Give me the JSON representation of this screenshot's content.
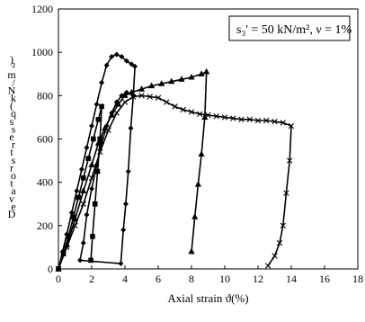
{
  "chart_data": {
    "type": "line",
    "annotation": "s₃' = 50 kN/m², ν = 1%",
    "xlabel": "Axial strain ϑ(%)",
    "ylabel_chars": [
      "D",
      "e",
      "v",
      "a",
      "t",
      "o",
      "r",
      "s",
      "t",
      "r",
      "e",
      "s",
      "s",
      "q",
      "(",
      "k",
      "N",
      "/",
      "m",
      "²",
      ")"
    ],
    "xlim": [
      0,
      18
    ],
    "ylim": [
      0,
      1200
    ],
    "x_ticks": [
      0,
      2,
      4,
      6,
      8,
      10,
      12,
      14,
      16,
      18
    ],
    "y_ticks": [
      0,
      200,
      400,
      600,
      800,
      1000,
      1200
    ],
    "grid": false,
    "series": [
      {
        "marker": "diamond",
        "values": [
          [
            0,
            0
          ],
          [
            0.25,
            80
          ],
          [
            0.5,
            160
          ],
          [
            0.8,
            260
          ],
          [
            1.1,
            360
          ],
          [
            1.4,
            460
          ],
          [
            1.7,
            560
          ],
          [
            2.0,
            660
          ],
          [
            2.3,
            760
          ],
          [
            2.6,
            860
          ],
          [
            2.9,
            940
          ],
          [
            3.2,
            980
          ],
          [
            3.5,
            990
          ],
          [
            3.8,
            980
          ],
          [
            4.1,
            960
          ],
          [
            4.4,
            945
          ],
          [
            4.6,
            935
          ],
          [
            4.5,
            800
          ],
          [
            4.35,
            650
          ],
          [
            4.2,
            450
          ],
          [
            4.05,
            300
          ],
          [
            3.9,
            180
          ],
          [
            3.75,
            25
          ],
          [
            1.3,
            40
          ],
          [
            1.5,
            120
          ],
          [
            1.7,
            250
          ],
          [
            2.0,
            370
          ],
          [
            2.3,
            480
          ],
          [
            2.6,
            580
          ],
          [
            2.9,
            660
          ],
          [
            3.2,
            720
          ],
          [
            3.5,
            770
          ],
          [
            3.8,
            800
          ],
          [
            4.1,
            815
          ]
        ]
      },
      {
        "marker": "square",
        "values": [
          [
            0,
            0
          ],
          [
            0.3,
            70
          ],
          [
            0.6,
            150
          ],
          [
            0.9,
            240
          ],
          [
            1.2,
            330
          ],
          [
            1.5,
            420
          ],
          [
            1.8,
            510
          ],
          [
            2.1,
            600
          ],
          [
            2.4,
            690
          ],
          [
            2.6,
            750
          ],
          [
            2.5,
            600
          ],
          [
            2.35,
            450
          ],
          [
            2.2,
            300
          ],
          [
            2.05,
            150
          ],
          [
            1.95,
            40
          ]
        ]
      },
      {
        "marker": "triangle",
        "values": [
          [
            0,
            0
          ],
          [
            0.5,
            110
          ],
          [
            1.0,
            230
          ],
          [
            1.5,
            360
          ],
          [
            2.0,
            480
          ],
          [
            2.4,
            580
          ],
          [
            2.8,
            650
          ],
          [
            3.2,
            710
          ],
          [
            3.6,
            760
          ],
          [
            4.0,
            800
          ],
          [
            4.4,
            815
          ],
          [
            5.0,
            830
          ],
          [
            5.6,
            845
          ],
          [
            6.2,
            855
          ],
          [
            6.8,
            865
          ],
          [
            7.4,
            875
          ],
          [
            8.0,
            885
          ],
          [
            8.6,
            900
          ],
          [
            8.9,
            910
          ],
          [
            8.8,
            700
          ],
          [
            8.6,
            530
          ],
          [
            8.4,
            390
          ],
          [
            8.2,
            240
          ],
          [
            8.0,
            80
          ]
        ]
      },
      {
        "marker": "cross",
        "values": [
          [
            0,
            0
          ],
          [
            0.5,
            100
          ],
          [
            1.0,
            200
          ],
          [
            1.5,
            300
          ],
          [
            2.0,
            420
          ],
          [
            2.5,
            540
          ],
          [
            3.0,
            640
          ],
          [
            3.5,
            720
          ],
          [
            4.0,
            770
          ],
          [
            4.5,
            795
          ],
          [
            5.0,
            800
          ],
          [
            5.5,
            795
          ],
          [
            6.0,
            790
          ],
          [
            6.5,
            770
          ],
          [
            7.0,
            750
          ],
          [
            7.5,
            735
          ],
          [
            8.0,
            725
          ],
          [
            8.5,
            715
          ],
          [
            9.0,
            710
          ],
          [
            9.5,
            705
          ],
          [
            10.0,
            700
          ],
          [
            10.5,
            695
          ],
          [
            11.0,
            690
          ],
          [
            11.5,
            690
          ],
          [
            12.0,
            685
          ],
          [
            12.5,
            685
          ],
          [
            13.0,
            680
          ],
          [
            13.5,
            675
          ],
          [
            14.0,
            660
          ],
          [
            13.9,
            500
          ],
          [
            13.7,
            350
          ],
          [
            13.5,
            200
          ],
          [
            13.3,
            120
          ],
          [
            13.0,
            60
          ],
          [
            12.6,
            15
          ]
        ]
      }
    ]
  }
}
